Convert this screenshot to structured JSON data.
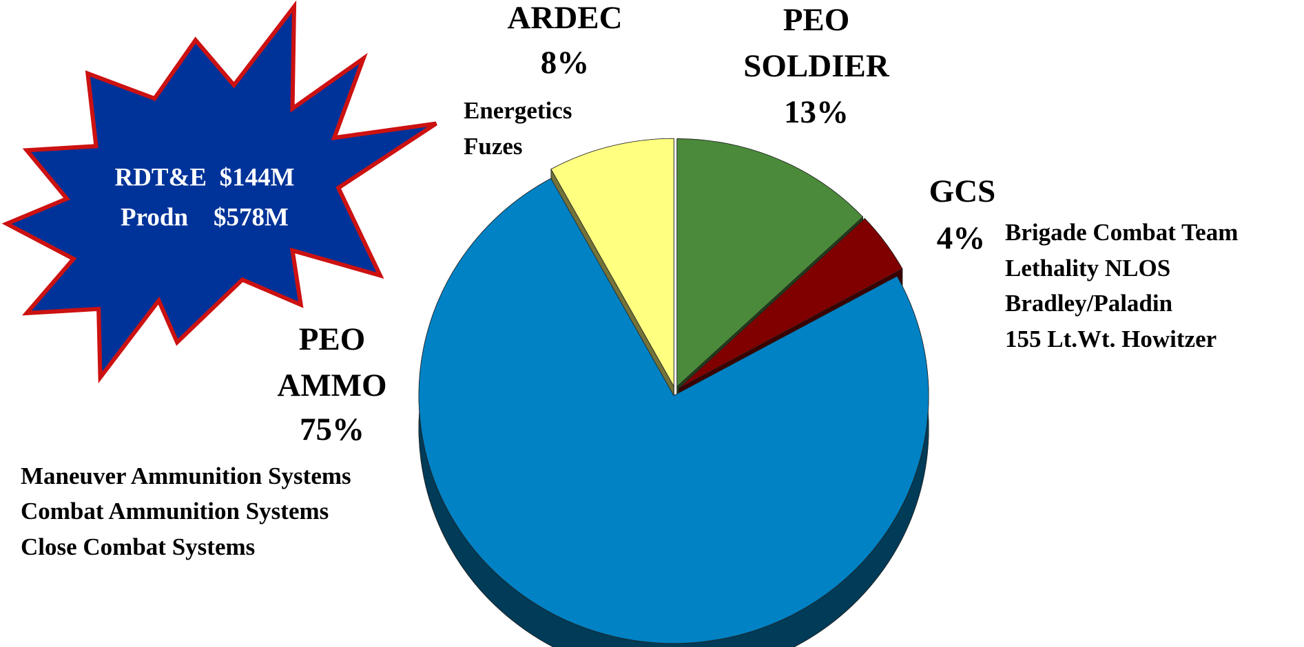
{
  "chart_data": {
    "type": "pie",
    "categories": [
      "PEO SOLDIER",
      "GCS",
      "PEO AMMO",
      "ARDEC"
    ],
    "values": [
      13,
      4,
      75,
      8
    ],
    "value_labels": [
      "13%",
      "4%",
      "75%",
      "8%"
    ],
    "colors": [
      "#4a8a3a",
      "#800000",
      "#0082c4",
      "#ffff80"
    ],
    "details": [
      [],
      [
        "Brigade Combat Team",
        "Lethality NLOS",
        "Bradley/Paladin",
        "155 Lt.Wt. Howitzer"
      ],
      [
        "Maneuver Ammunition Systems",
        "Combat Ammunition Systems",
        "Close Combat Systems"
      ],
      [
        "Energetics",
        "Fuzes"
      ]
    ],
    "annotation": [
      "RDT&E  $144M",
      "Prodn    $578M"
    ]
  }
}
